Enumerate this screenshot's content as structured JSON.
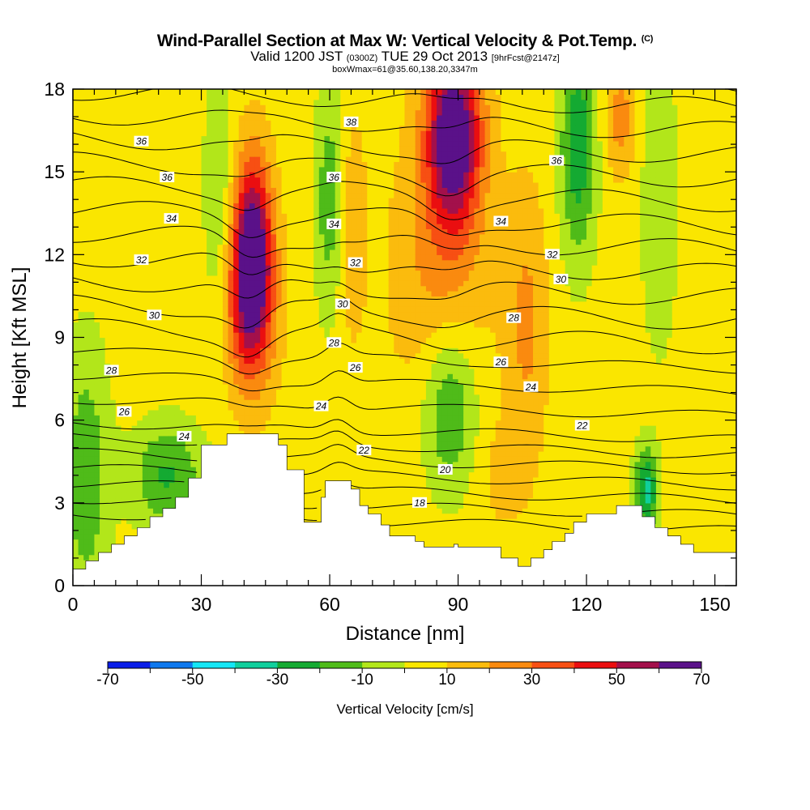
{
  "header": {
    "title": "Wind-Parallel Section at Max W: Vertical Velocity & Pot.Temp.",
    "title_mark": "(C)",
    "valid_prefix": "Valid 1200 JST",
    "valid_utc": "(0300Z)",
    "valid_date": "TUE 29 Oct 2013",
    "forecast": "[9hrFcst@2147z]",
    "box_info": "boxWmax=61@35.60,138.20,3347m"
  },
  "chart_data": {
    "type": "heatmap",
    "xlabel": "Distance [nm]",
    "ylabel": "Height [Kft MSL]",
    "xlim": [
      0,
      155
    ],
    "ylim": [
      0,
      18
    ],
    "x_ticks": [
      0,
      30,
      60,
      90,
      120,
      150
    ],
    "y_ticks": [
      0,
      3,
      6,
      9,
      12,
      15,
      18
    ],
    "colorbar": {
      "title": "Vertical Velocity [cm/s]",
      "levels": [
        -70,
        -60,
        -50,
        -40,
        -30,
        -20,
        -10,
        0,
        10,
        20,
        30,
        40,
        50,
        60,
        70
      ],
      "tick_labels": [
        "-70",
        "-50",
        "-30",
        "-10",
        "10",
        "30",
        "50",
        "70"
      ],
      "colors": [
        "#0a1ee8",
        "#0e78ee",
        "#14e6f5",
        "#10cf9c",
        "#14aa32",
        "#4fbb19",
        "#b2e61a",
        "#fae600",
        "#fbbb0d",
        "#fa8a0f",
        "#f74f13",
        "#ea0e10",
        "#a3104b",
        "#5a1189"
      ]
    },
    "background_value_cms": 5,
    "velocity_features": [
      {
        "x": 42,
        "y": 12.2,
        "sx": 3.2,
        "sy": 2.4,
        "w": 65
      },
      {
        "x": 41,
        "y": 9.8,
        "sx": 4.5,
        "sy": 2.2,
        "w": 28
      },
      {
        "x": 89,
        "y": 16.4,
        "sx": 4.5,
        "sy": 2.3,
        "w": 68
      },
      {
        "x": 86,
        "y": 11.5,
        "sx": 8,
        "sy": 3.5,
        "w": 18
      },
      {
        "x": 106,
        "y": 9.5,
        "sx": 3.5,
        "sy": 3.5,
        "w": 17
      },
      {
        "x": 128,
        "y": 17,
        "sx": 2.5,
        "sy": 1.5,
        "w": 20
      },
      {
        "x": 65,
        "y": 13,
        "sx": 2.5,
        "sy": 3,
        "w": 13
      },
      {
        "x": 60,
        "y": 14,
        "sx": 2.5,
        "sy": 3,
        "w": -22
      },
      {
        "x": 88,
        "y": 6.5,
        "sx": 4.5,
        "sy": 2.2,
        "w": -28
      },
      {
        "x": 118,
        "y": 16,
        "sx": 3,
        "sy": 3,
        "w": -32
      },
      {
        "x": 3,
        "y": 4,
        "sx": 4,
        "sy": 3.5,
        "w": -22
      },
      {
        "x": 22,
        "y": 4,
        "sx": 6,
        "sy": 1.4,
        "w": -26
      },
      {
        "x": 134,
        "y": 3.5,
        "sx": 2,
        "sy": 1.1,
        "w": -38
      },
      {
        "x": 34,
        "y": 14,
        "sx": 2.5,
        "sy": 4,
        "w": -15
      },
      {
        "x": 137,
        "y": 14,
        "sx": 3,
        "sy": 4,
        "w": -15
      },
      {
        "x": 100,
        "y": 4,
        "sx": 4,
        "sy": 1.5,
        "w": 8
      }
    ],
    "terrain_kft": [
      [
        0,
        0.6
      ],
      [
        3,
        0.6
      ],
      [
        3,
        0.9
      ],
      [
        6,
        0.9
      ],
      [
        6,
        1.2
      ],
      [
        9,
        1.2
      ],
      [
        9,
        1.5
      ],
      [
        12,
        1.5
      ],
      [
        12,
        1.8
      ],
      [
        15,
        1.8
      ],
      [
        15,
        2.1
      ],
      [
        18,
        2.1
      ],
      [
        18,
        2.5
      ],
      [
        21,
        2.5
      ],
      [
        21,
        2.8
      ],
      [
        24,
        2.8
      ],
      [
        24,
        3.2
      ],
      [
        27,
        3.2
      ],
      [
        27,
        3.9
      ],
      [
        30,
        3.9
      ],
      [
        30,
        5.1
      ],
      [
        36,
        5.1
      ],
      [
        36,
        5.5
      ],
      [
        48,
        5.5
      ],
      [
        48,
        5.1
      ],
      [
        50,
        5.1
      ],
      [
        50,
        4.2
      ],
      [
        51,
        4.2
      ],
      [
        51,
        4.2
      ],
      [
        54,
        4.2
      ],
      [
        54,
        2.3
      ],
      [
        58,
        2.3
      ],
      [
        58,
        3.2
      ],
      [
        59,
        3.2
      ],
      [
        59,
        3.8
      ],
      [
        65,
        3.8
      ],
      [
        65,
        3.5
      ],
      [
        67,
        3.5
      ],
      [
        67,
        2.9
      ],
      [
        69,
        2.9
      ],
      [
        69,
        2.6
      ],
      [
        72,
        2.6
      ],
      [
        72,
        2.2
      ],
      [
        74,
        2.2
      ],
      [
        74,
        1.8
      ],
      [
        80,
        1.8
      ],
      [
        80,
        1.6
      ],
      [
        82,
        1.6
      ],
      [
        82,
        1.4
      ],
      [
        89,
        1.4
      ],
      [
        89,
        1.5
      ],
      [
        90,
        1.5
      ],
      [
        90,
        1.4
      ],
      [
        100,
        1.4
      ],
      [
        100,
        1.0
      ],
      [
        104,
        1.0
      ],
      [
        104,
        0.7
      ],
      [
        107,
        0.7
      ],
      [
        107,
        1.0
      ],
      [
        110,
        1.0
      ],
      [
        110,
        1.3
      ],
      [
        112,
        1.3
      ],
      [
        112,
        1.6
      ],
      [
        115,
        1.6
      ],
      [
        115,
        1.9
      ],
      [
        117,
        1.9
      ],
      [
        117,
        2.3
      ],
      [
        120,
        2.3
      ],
      [
        120,
        2.6
      ],
      [
        127,
        2.6
      ],
      [
        127,
        2.9
      ],
      [
        133,
        2.9
      ],
      [
        133,
        2.5
      ],
      [
        136,
        2.5
      ],
      [
        136,
        2.1
      ],
      [
        139,
        2.1
      ],
      [
        139,
        1.8
      ],
      [
        142,
        1.8
      ],
      [
        142,
        1.5
      ],
      [
        145,
        1.5
      ],
      [
        145,
        1.2
      ],
      [
        155,
        1.2
      ]
    ],
    "isentropes": {
      "levels": [
        16,
        17,
        18,
        19,
        20,
        21,
        22,
        23,
        24,
        25,
        26,
        27,
        28,
        29,
        30,
        31,
        32,
        33,
        34,
        35,
        36,
        37,
        38
      ],
      "labeled": [
        {
          "level": 18,
          "label": "18",
          "x": 81,
          "y": 3.0
        },
        {
          "level": 20,
          "label": "20",
          "x": 87,
          "y": 4.2
        },
        {
          "level": 22,
          "label": "22",
          "x": 68,
          "y": 4.9
        },
        {
          "level": 22,
          "label": "22",
          "x": 119,
          "y": 5.8
        },
        {
          "level": 24,
          "label": "24",
          "x": 26,
          "y": 5.4
        },
        {
          "level": 24,
          "label": "24",
          "x": 58,
          "y": 6.5
        },
        {
          "level": 24,
          "label": "24",
          "x": 107,
          "y": 7.2
        },
        {
          "level": 26,
          "label": "26",
          "x": 12,
          "y": 6.3
        },
        {
          "level": 26,
          "label": "26",
          "x": 66,
          "y": 7.9
        },
        {
          "level": 26,
          "label": "26",
          "x": 100,
          "y": 8.1
        },
        {
          "level": 28,
          "label": "28",
          "x": 9,
          "y": 7.8
        },
        {
          "level": 28,
          "label": "28",
          "x": 61,
          "y": 8.8
        },
        {
          "level": 28,
          "label": "28",
          "x": 103,
          "y": 9.7
        },
        {
          "level": 30,
          "label": "30",
          "x": 19,
          "y": 9.8
        },
        {
          "level": 30,
          "label": "30",
          "x": 63,
          "y": 10.2
        },
        {
          "level": 30,
          "label": "30",
          "x": 114,
          "y": 11.1
        },
        {
          "level": 32,
          "label": "32",
          "x": 16,
          "y": 11.8
        },
        {
          "level": 32,
          "label": "32",
          "x": 66,
          "y": 11.7
        },
        {
          "level": 32,
          "label": "32",
          "x": 112,
          "y": 12.0
        },
        {
          "level": 34,
          "label": "34",
          "x": 23,
          "y": 13.3
        },
        {
          "level": 34,
          "label": "34",
          "x": 61,
          "y": 13.1
        },
        {
          "level": 34,
          "label": "34",
          "x": 100,
          "y": 13.2
        },
        {
          "level": 36,
          "label": "36",
          "x": 22,
          "y": 14.8
        },
        {
          "level": 36,
          "label": "36",
          "x": 61,
          "y": 14.8
        },
        {
          "level": 36,
          "label": "36",
          "x": 113,
          "y": 15.4
        },
        {
          "level": 36,
          "label": "36",
          "x": 16,
          "y": 16.1
        },
        {
          "level": 38,
          "label": "38",
          "x": 65,
          "y": 16.8
        }
      ]
    },
    "grid": false,
    "legend": "bottom"
  }
}
